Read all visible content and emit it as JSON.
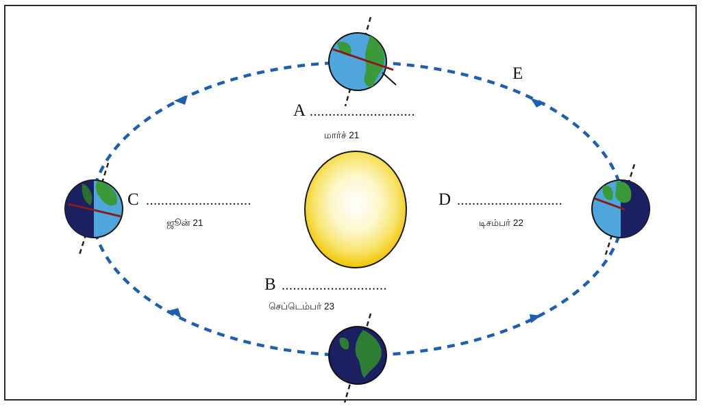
{
  "diagram": {
    "orbit_color": "#1f5fb0",
    "sun_color": "#f2c400",
    "ocean_color": "#4fa6dc",
    "land_color": "#3a9a3a",
    "night_color": "#1a2060",
    "positions": {
      "A": {
        "letter": "A",
        "blank": "............................",
        "date": "மார்ச்   21"
      },
      "B": {
        "letter": "B",
        "blank": "............................",
        "date": "செப்டெம்பர்   23"
      },
      "C": {
        "letter": "C",
        "blank": "............................",
        "date": "ஜூன்   21"
      },
      "D": {
        "letter": "D",
        "blank": "............................",
        "date": "டிசம்பர்   22"
      },
      "E": {
        "letter": "E"
      }
    }
  }
}
